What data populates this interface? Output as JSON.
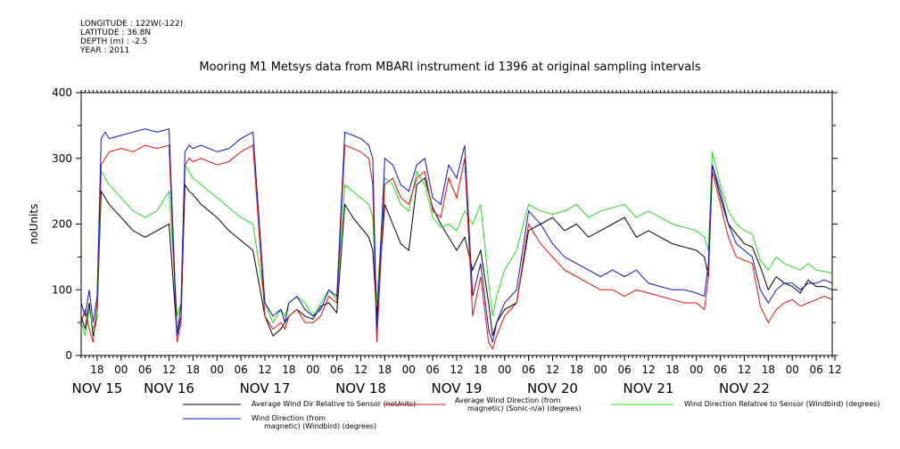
{
  "header": {
    "lines": [
      "LONGITUDE : 122W(-122)",
      "LATITUDE : 36.8N",
      "DEPTH (m) : -2.5",
      "YEAR : 2011"
    ]
  },
  "chart_data": {
    "type": "line",
    "title": "Mooring M1 Metsys data from MBARI instrument id 1396 at original sampling intervals",
    "xlabel": "",
    "ylabel": "noUnits",
    "ylim": [
      0,
      400
    ],
    "yticks": [
      0,
      100,
      200,
      300,
      400
    ],
    "x_units": "hours since NOV 15 00:00",
    "xlim": [
      -10,
      178
    ],
    "hour_ticks": [
      {
        "x": -6,
        "label": "18"
      },
      {
        "x": 0,
        "label": "00"
      },
      {
        "x": 6,
        "label": "06"
      },
      {
        "x": 12,
        "label": "12"
      },
      {
        "x": 18,
        "label": "18"
      },
      {
        "x": 24,
        "label": "00"
      },
      {
        "x": 30,
        "label": "06"
      },
      {
        "x": 36,
        "label": "12"
      },
      {
        "x": 42,
        "label": "18"
      },
      {
        "x": 48,
        "label": "00"
      },
      {
        "x": 54,
        "label": "06"
      },
      {
        "x": 60,
        "label": "12"
      },
      {
        "x": 66,
        "label": "18"
      },
      {
        "x": 72,
        "label": "00"
      },
      {
        "x": 78,
        "label": "06"
      },
      {
        "x": 84,
        "label": "12"
      },
      {
        "x": 90,
        "label": "18"
      },
      {
        "x": 96,
        "label": "00"
      },
      {
        "x": 102,
        "label": "06"
      },
      {
        "x": 108,
        "label": "12"
      },
      {
        "x": 114,
        "label": "18"
      },
      {
        "x": 120,
        "label": "00"
      },
      {
        "x": 126,
        "label": "06"
      },
      {
        "x": 132,
        "label": "12"
      },
      {
        "x": 138,
        "label": "18"
      },
      {
        "x": 144,
        "label": "00"
      },
      {
        "x": 150,
        "label": "06"
      },
      {
        "x": 156,
        "label": "12"
      },
      {
        "x": 162,
        "label": "18"
      },
      {
        "x": 168,
        "label": "00"
      },
      {
        "x": 174,
        "label": "06"
      },
      {
        "x": 180,
        "label": "12"
      }
    ],
    "day_labels": [
      {
        "x": -6,
        "label": "NOV 15"
      },
      {
        "x": 12,
        "label": "NOV 16"
      },
      {
        "x": 36,
        "label": "NOV 17"
      },
      {
        "x": 60,
        "label": "NOV 18"
      },
      {
        "x": 84,
        "label": "NOV 19"
      },
      {
        "x": 108,
        "label": "NOV 20"
      },
      {
        "x": 132,
        "label": "NOV 21"
      },
      {
        "x": 156,
        "label": "NOV 22"
      }
    ],
    "series": [
      {
        "name": "Average Wind Dir Relative to Sensor (noUnits)",
        "color": "#000000",
        "x": [
          -10,
          -9,
          -8,
          -7,
          -6,
          -5,
          -4,
          -3,
          0,
          3,
          6,
          9,
          12,
          14,
          15,
          16,
          17,
          18,
          20,
          24,
          27,
          30,
          33,
          36,
          38,
          40,
          41,
          42,
          44,
          46,
          48,
          50,
          52,
          54,
          56,
          58,
          60,
          62,
          63,
          64,
          66,
          68,
          70,
          72,
          74,
          76,
          78,
          80,
          82,
          84,
          86,
          88,
          90,
          92,
          93,
          94,
          96,
          99,
          102,
          105,
          108,
          111,
          114,
          117,
          120,
          123,
          126,
          129,
          132,
          135,
          138,
          141,
          144,
          146,
          147,
          148,
          150,
          152,
          154,
          156,
          158,
          160,
          162,
          164,
          166,
          168,
          170,
          172,
          174,
          176,
          178
        ],
        "y": [
          60,
          40,
          80,
          30,
          60,
          250,
          240,
          230,
          210,
          190,
          180,
          190,
          200,
          30,
          60,
          260,
          250,
          245,
          230,
          210,
          190,
          175,
          160,
          60,
          30,
          40,
          50,
          60,
          70,
          60,
          55,
          75,
          80,
          65,
          230,
          210,
          195,
          180,
          160,
          60,
          230,
          200,
          170,
          160,
          260,
          270,
          225,
          200,
          180,
          160,
          180,
          130,
          160,
          80,
          30,
          50,
          70,
          80,
          190,
          200,
          210,
          190,
          200,
          180,
          190,
          200,
          210,
          180,
          190,
          180,
          170,
          165,
          160,
          150,
          120,
          290,
          240,
          200,
          185,
          170,
          165,
          135,
          100,
          120,
          110,
          105,
          95,
          115,
          105,
          105,
          100
        ]
      },
      {
        "name": "Average Wind Direction (from, magnetic) (Sonic-n/a) (degrees)",
        "color": "#dd1111",
        "x": [
          -10,
          -9,
          -8,
          -7,
          -6,
          -5,
          -4,
          -3,
          0,
          3,
          6,
          9,
          12,
          14,
          15,
          16,
          17,
          18,
          20,
          24,
          27,
          30,
          33,
          36,
          38,
          40,
          41,
          42,
          44,
          46,
          48,
          50,
          52,
          54,
          56,
          58,
          60,
          62,
          63,
          64,
          66,
          68,
          70,
          72,
          74,
          76,
          78,
          80,
          82,
          84,
          86,
          88,
          90,
          92,
          93,
          94,
          96,
          99,
          102,
          105,
          108,
          111,
          114,
          117,
          120,
          123,
          126,
          129,
          132,
          135,
          138,
          141,
          144,
          146,
          147,
          148,
          150,
          152,
          154,
          156,
          158,
          160,
          162,
          164,
          166,
          168,
          170,
          172,
          174,
          176,
          178
        ],
        "y": [
          50,
          70,
          40,
          20,
          80,
          290,
          300,
          310,
          315,
          310,
          320,
          315,
          320,
          20,
          50,
          290,
          300,
          295,
          300,
          290,
          295,
          310,
          320,
          60,
          40,
          50,
          40,
          60,
          70,
          50,
          50,
          60,
          90,
          80,
          320,
          315,
          310,
          300,
          260,
          20,
          260,
          270,
          240,
          230,
          270,
          280,
          220,
          210,
          270,
          240,
          300,
          60,
          120,
          20,
          10,
          30,
          60,
          80,
          200,
          170,
          150,
          130,
          120,
          110,
          100,
          100,
          90,
          100,
          95,
          90,
          85,
          80,
          80,
          70,
          120,
          280,
          230,
          180,
          150,
          145,
          140,
          75,
          50,
          70,
          80,
          85,
          75,
          80,
          85,
          90,
          85
        ]
      },
      {
        "name": "Wind Direction Relative to Sensor (Windbird) (degrees)",
        "color": "#22dd22",
        "x": [
          -10,
          -9,
          -8,
          -7,
          -6,
          -5,
          -4,
          -3,
          0,
          3,
          6,
          9,
          12,
          14,
          15,
          16,
          17,
          18,
          20,
          24,
          27,
          30,
          33,
          36,
          38,
          40,
          41,
          42,
          44,
          46,
          48,
          50,
          52,
          54,
          56,
          58,
          60,
          62,
          63,
          64,
          66,
          68,
          70,
          72,
          74,
          76,
          78,
          80,
          82,
          84,
          86,
          88,
          90,
          92,
          93,
          94,
          96,
          99,
          102,
          105,
          108,
          111,
          114,
          117,
          120,
          123,
          126,
          129,
          132,
          135,
          138,
          141,
          144,
          146,
          147,
          148,
          150,
          152,
          154,
          156,
          158,
          160,
          162,
          164,
          166,
          168,
          170,
          172,
          174,
          176,
          178
        ],
        "y": [
          50,
          30,
          70,
          40,
          60,
          280,
          270,
          260,
          240,
          220,
          210,
          220,
          250,
          60,
          80,
          290,
          280,
          270,
          260,
          240,
          225,
          210,
          200,
          80,
          50,
          70,
          60,
          80,
          90,
          80,
          60,
          80,
          100,
          85,
          260,
          250,
          240,
          230,
          210,
          80,
          270,
          260,
          230,
          220,
          280,
          260,
          210,
          195,
          200,
          190,
          220,
          200,
          230,
          110,
          60,
          90,
          130,
          160,
          230,
          220,
          215,
          220,
          230,
          210,
          220,
          225,
          230,
          210,
          220,
          210,
          200,
          195,
          190,
          180,
          160,
          310,
          260,
          220,
          200,
          190,
          185,
          145,
          130,
          150,
          140,
          135,
          130,
          140,
          130,
          128,
          125
        ]
      },
      {
        "name": "Wind Direction (from, magnetic) (Windbird) (degrees)",
        "color": "#1111cc",
        "x": [
          -10,
          -9,
          -8,
          -7,
          -6,
          -5,
          -4,
          -3,
          0,
          3,
          6,
          9,
          12,
          14,
          15,
          16,
          17,
          18,
          20,
          24,
          27,
          30,
          33,
          36,
          38,
          40,
          41,
          42,
          44,
          46,
          48,
          50,
          52,
          54,
          56,
          58,
          60,
          62,
          63,
          64,
          66,
          68,
          70,
          72,
          74,
          76,
          78,
          80,
          82,
          84,
          86,
          88,
          90,
          92,
          93,
          94,
          96,
          99,
          102,
          105,
          108,
          111,
          114,
          117,
          120,
          123,
          126,
          129,
          132,
          135,
          138,
          141,
          144,
          146,
          147,
          148,
          150,
          152,
          154,
          156,
          158,
          160,
          162,
          164,
          166,
          168,
          170,
          172,
          174,
          176,
          178
        ],
        "y": [
          80,
          60,
          100,
          50,
          90,
          330,
          340,
          330,
          335,
          340,
          345,
          340,
          345,
          30,
          80,
          310,
          320,
          315,
          320,
          310,
          315,
          330,
          340,
          80,
          60,
          70,
          50,
          80,
          90,
          70,
          60,
          70,
          100,
          90,
          340,
          335,
          330,
          320,
          300,
          40,
          300,
          290,
          260,
          250,
          290,
          300,
          240,
          230,
          290,
          270,
          320,
          90,
          140,
          40,
          20,
          50,
          80,
          100,
          220,
          200,
          170,
          150,
          140,
          130,
          120,
          130,
          120,
          130,
          110,
          105,
          100,
          100,
          95,
          90,
          140,
          290,
          250,
          200,
          170,
          160,
          150,
          100,
          80,
          100,
          110,
          110,
          100,
          110,
          110,
          115,
          110
        ]
      }
    ],
    "legend": [
      {
        "lines": [
          "Average Wind Dir Relative to Sensor (noUnits)"
        ],
        "color": "#000000"
      },
      {
        "lines": [
          "Average Wind Direction (from",
          "magnetic) (Sonic-n/a) (degrees)"
        ],
        "color": "#dd1111"
      },
      {
        "lines": [
          "Wind Direction Relative to Sensor (Windbird) (degrees)"
        ],
        "color": "#22dd22"
      },
      {
        "lines": [
          "Wind Direction (from",
          "magnetic) (Windbird) (degrees)"
        ],
        "color": "#1111cc"
      }
    ],
    "legend_placement": "bottom",
    "grid": false
  }
}
